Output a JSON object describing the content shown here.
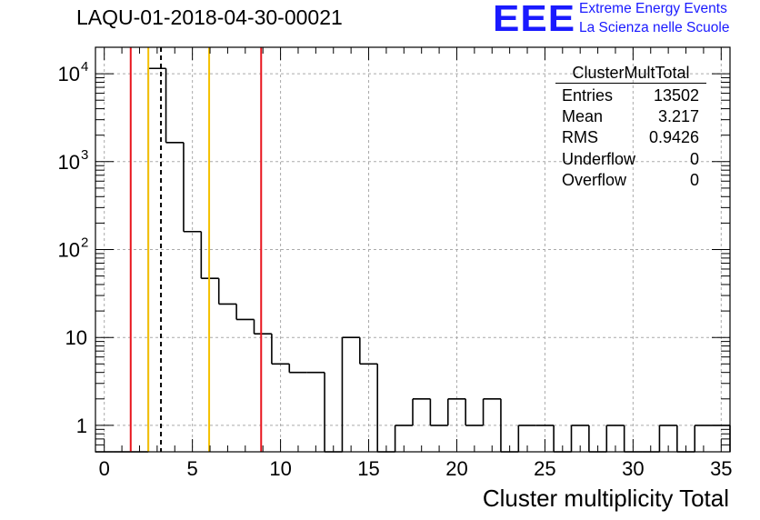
{
  "title": "LAQU-01-2018-04-30-00021",
  "logo": {
    "letters": "EEE",
    "line1": "Extreme Energy Events",
    "line2": "La Scienza nelle Scuole"
  },
  "stats": {
    "name": "ClusterMultTotal",
    "rows": [
      {
        "label": "Entries",
        "value": "13502"
      },
      {
        "label": "Mean",
        "value": "3.217"
      },
      {
        "label": "RMS",
        "value": "0.9426"
      },
      {
        "label": "Underflow",
        "value": "0"
      },
      {
        "label": "Overflow",
        "value": "0"
      }
    ]
  },
  "chart_data": {
    "type": "bar",
    "histogram": "step",
    "xlabel": "Cluster multiplicity Total",
    "ylabel": "",
    "xlim": [
      -0.5,
      35.5
    ],
    "ylim": [
      0.5,
      20000
    ],
    "yscale": "log",
    "grid": true,
    "bin_width": 1,
    "x": [
      -0.5,
      0.5,
      1.5,
      2.5,
      3.5,
      4.5,
      5.5,
      6.5,
      7.5,
      8.5,
      9.5,
      10.5,
      11.5,
      12.5,
      13.5,
      14.5,
      15.5,
      16.5,
      17.5,
      18.5,
      19.5,
      20.5,
      21.5,
      22.5,
      23.5,
      24.5,
      25.5,
      26.5,
      27.5,
      28.5,
      29.5,
      30.5,
      31.5,
      32.5,
      33.5,
      34.5
    ],
    "values": [
      0,
      0,
      0,
      11500,
      1650,
      160,
      47,
      24,
      16,
      11,
      5,
      4,
      4,
      0,
      10,
      5,
      0,
      1,
      2,
      1,
      2,
      1,
      2,
      0,
      1,
      1,
      0,
      1,
      0,
      1,
      0,
      0,
      1,
      0,
      1,
      1
    ],
    "x_ticks": [
      0,
      5,
      10,
      15,
      20,
      25,
      30,
      35
    ],
    "y_ticks": [
      {
        "value": 1,
        "label": "1"
      },
      {
        "value": 10,
        "label": "10"
      },
      {
        "value": 100,
        "label": "10",
        "exp": "2"
      },
      {
        "value": 1000,
        "label": "10",
        "exp": "3"
      },
      {
        "value": 10000,
        "label": "10",
        "exp": "4"
      }
    ],
    "lines": [
      {
        "x": 1.5,
        "color": "#e8161e",
        "style": "solid"
      },
      {
        "x": 2.5,
        "color": "#f5c000",
        "style": "solid"
      },
      {
        "x": 3.217,
        "color": "#000000",
        "style": "dashed"
      },
      {
        "x": 5.95,
        "color": "#f5c000",
        "style": "solid"
      },
      {
        "x": 8.9,
        "color": "#e8161e",
        "style": "solid"
      }
    ]
  }
}
